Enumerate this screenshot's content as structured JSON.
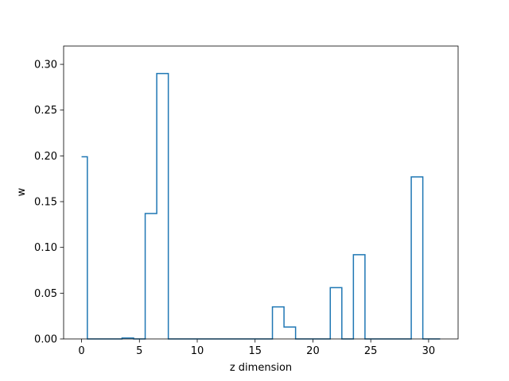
{
  "chart_data": {
    "type": "line",
    "drawstyle": "steps-mid",
    "title": "",
    "xlabel": "z dimension",
    "ylabel": "w",
    "xlim": [
      -1.55,
      32.55
    ],
    "ylim": [
      0,
      0.32
    ],
    "xticks": [
      0,
      5,
      10,
      15,
      20,
      25,
      30
    ],
    "xtick_labels": [
      "0",
      "5",
      "10",
      "15",
      "20",
      "25",
      "30"
    ],
    "yticks": [
      0,
      0.05,
      0.1,
      0.15,
      0.2,
      0.25,
      0.3
    ],
    "ytick_labels": [
      "0.00",
      "0.05",
      "0.10",
      "0.15",
      "0.20",
      "0.25",
      "0.30"
    ],
    "grid": false,
    "color": "#1f77b4",
    "x": [
      0,
      1,
      2,
      3,
      4,
      5,
      6,
      7,
      8,
      9,
      10,
      11,
      12,
      13,
      14,
      15,
      16,
      17,
      18,
      19,
      20,
      21,
      22,
      23,
      24,
      25,
      26,
      27,
      28,
      29,
      30,
      31
    ],
    "y": [
      0.199,
      0,
      0,
      0,
      0.001,
      0,
      0.137,
      0.29,
      0,
      0,
      0,
      0,
      0,
      0,
      0,
      0,
      0,
      0.035,
      0.013,
      0,
      0,
      0,
      0.056,
      0,
      0.092,
      0,
      0,
      0,
      0,
      0.177,
      0,
      0
    ]
  }
}
